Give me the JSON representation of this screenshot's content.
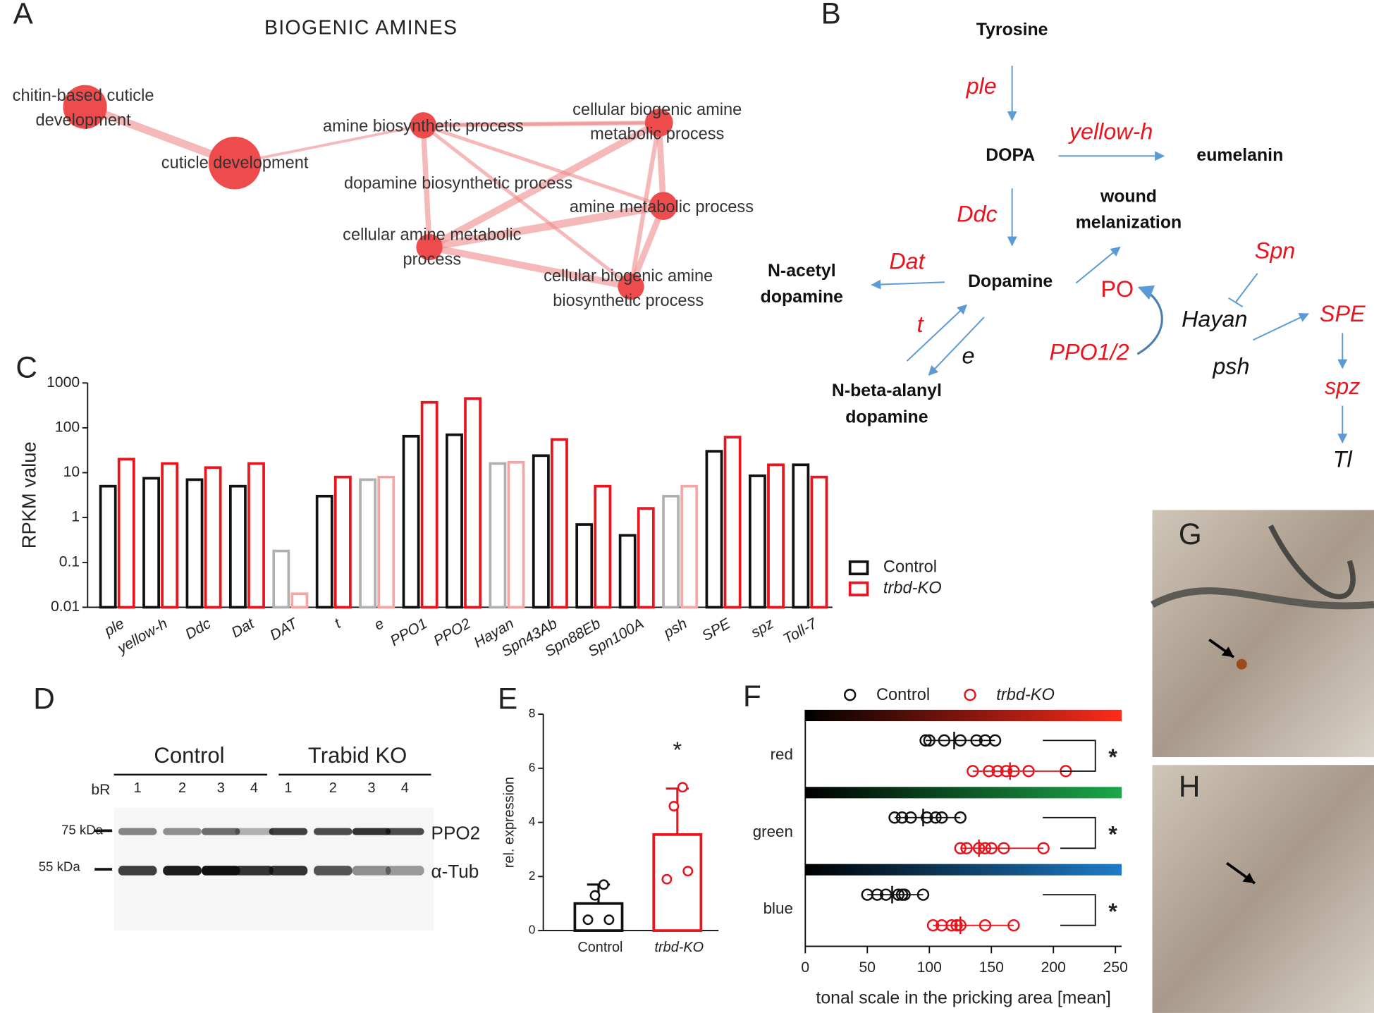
{
  "panels": [
    "A",
    "B",
    "C",
    "D",
    "E",
    "F",
    "G",
    "H"
  ],
  "network": {
    "title": "BIOGENIC AMINES",
    "nodes": [
      {
        "lines": [
          "chitin-based cuticle",
          "development"
        ]
      },
      {
        "lines": [
          "cuticle development"
        ]
      },
      {
        "lines": [
          "amine biosynthetic process"
        ]
      },
      {
        "lines": [
          "cellular biogenic amine",
          "metabolic process"
        ]
      },
      {
        "lines": [
          "dopamine biosynthetic process"
        ]
      },
      {
        "lines": [
          "amine metabolic process"
        ]
      },
      {
        "lines": [
          "cellular amine metabolic",
          "process"
        ]
      },
      {
        "lines": [
          "cellular biogenic amine",
          "biosynthetic process"
        ]
      }
    ]
  },
  "pathway": {
    "labels": [
      "Tyrosine",
      "ple",
      "DOPA",
      "yellow-h",
      "eumelanin",
      "wound",
      "melanization",
      "Ddc",
      "Dat",
      "N-acetyl",
      "dopamine",
      "Dopamine",
      "PO",
      "Spn",
      "Hayan",
      "SPE",
      "t",
      "e",
      "PPO1/2",
      "psh",
      "N-beta-alanyl",
      "dopamine",
      "spz",
      "Tl"
    ]
  },
  "chart_data": [
    {
      "type": "bar",
      "ylabel": "RPKM value",
      "log_scale": true,
      "ylim": [
        0.01,
        1000
      ],
      "yticks": [
        0.01,
        0.1,
        1,
        10,
        100,
        1000
      ],
      "categories": [
        "ple",
        "yellow-h",
        "Ddc",
        "Dat",
        "DAT",
        "t",
        "e",
        "PPO1",
        "PPO2",
        "Hayan",
        "Spn43Ab",
        "Spn88Eb",
        "Spn100A",
        "psh",
        "SPE",
        "spz",
        "Toll-7"
      ],
      "series": [
        {
          "name": "Control",
          "color": "#111111",
          "colors": [
            "#111111",
            "#111111",
            "#111111",
            "#111111",
            "#b0b0b0",
            "#111111",
            "#b0b0b0",
            "#111111",
            "#111111",
            "#b0b0b0",
            "#111111",
            "#111111",
            "#111111",
            "#b0b0b0",
            "#111111",
            "#111111",
            "#111111"
          ],
          "values": [
            5,
            7.5,
            7,
            5,
            0.18,
            3,
            7,
            65,
            70,
            16,
            24,
            0.7,
            0.4,
            3,
            30,
            8.5,
            15
          ]
        },
        {
          "name": "trbd-KO",
          "color": "#e8141e",
          "colors": [
            "#e8141e",
            "#e8141e",
            "#e8141e",
            "#e8141e",
            "#f4a6a6",
            "#e8141e",
            "#f4a6a6",
            "#e8141e",
            "#e8141e",
            "#f4a6a6",
            "#e8141e",
            "#e8141e",
            "#e8141e",
            "#f4a6a6",
            "#e8141e",
            "#e8141e",
            "#e8141e"
          ],
          "values": [
            20,
            16,
            13,
            16,
            0.02,
            8,
            8,
            370,
            450,
            17,
            55,
            5,
            1.6,
            5,
            62,
            15,
            8
          ]
        }
      ]
    },
    {
      "type": "bar",
      "ylabel": "rel. expression",
      "ylim": [
        0,
        8
      ],
      "yticks": [
        0,
        2,
        4,
        6,
        8
      ],
      "categories": [
        "Control",
        "trbd-KO"
      ],
      "colors": [
        "#111111",
        "#e8141e"
      ],
      "values": [
        1.0,
        3.55
      ],
      "errors": [
        0.7,
        1.7
      ],
      "points": [
        [
          0.4,
          0.4,
          1.3,
          1.7
        ],
        [
          1.9,
          2.2,
          4.6,
          5.3
        ]
      ],
      "annotation": "*"
    },
    {
      "type": "strip",
      "xlabel": "tonal scale in the pricking area [mean]",
      "xlim": [
        0,
        255
      ],
      "xticks": [
        0,
        50,
        100,
        150,
        200,
        250
      ],
      "categories": [
        "red",
        "green",
        "blue"
      ],
      "gradient_colors": [
        "#ff2b1a",
        "#1aa84a",
        "#1e7cc8"
      ],
      "annotations": [
        "*",
        "*",
        "*"
      ],
      "series": [
        {
          "name": "Control",
          "color": "#111111",
          "values": [
            120,
            95,
            70
          ],
          "points": [
            [
              97,
              100,
              112,
              125,
              138,
              145,
              153
            ],
            [
              72,
              78,
              85,
              98,
              105,
              110,
              125
            ],
            [
              50,
              58,
              65,
              75,
              78,
              80,
              95
            ]
          ]
        },
        {
          "name": "trbd-KO",
          "color": "#e8141e",
          "values": [
            165,
            140,
            125
          ],
          "points": [
            [
              135,
              148,
              155,
              162,
              168,
              180,
              210
            ],
            [
              125,
              130,
              140,
              145,
              150,
              160,
              192
            ],
            [
              103,
              110,
              118,
              122,
              125,
              145,
              168
            ]
          ]
        }
      ]
    }
  ],
  "blot": {
    "groups": [
      "Control",
      "Trabid KO"
    ],
    "row_label": "bR",
    "lanes": [
      "1",
      "2",
      "3",
      "4",
      "1",
      "2",
      "3",
      "4"
    ],
    "markers": [
      "75 kDa",
      "55 kDa"
    ],
    "bands": [
      "PPO2",
      "α-Tub"
    ]
  }
}
